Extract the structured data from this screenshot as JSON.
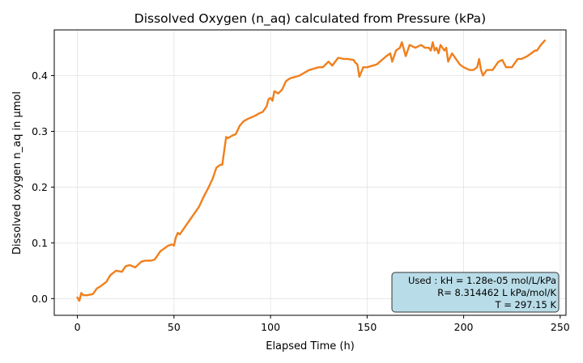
{
  "chart_data": {
    "type": "line",
    "title": "Dissolved Oxygen (n_aq) calculated from Pressure (kPa)",
    "xlabel": "Elapsed Time (h)",
    "ylabel": "Dissolved oxygen n_aq in µmol",
    "xlim": [
      -12,
      253
    ],
    "ylim": [
      -0.03,
      0.482
    ],
    "xticks": [
      0,
      50,
      100,
      150,
      200,
      250
    ],
    "xtick_labels": [
      "0",
      "50",
      "100",
      "150",
      "200",
      "250"
    ],
    "yticks": [
      0.0,
      0.1,
      0.2,
      0.3,
      0.4
    ],
    "ytick_labels": [
      "0.0",
      "0.1",
      "0.2",
      "0.3",
      "0.4"
    ],
    "grid": true,
    "legend": "none",
    "series": [
      {
        "color": "#f07f1c",
        "x": [
          0,
          1,
          2,
          3,
          5,
          8,
          10,
          12,
          15,
          17,
          20,
          23,
          25,
          27,
          30,
          33,
          35,
          38,
          40,
          43,
          45,
          47,
          49,
          50,
          51,
          52,
          53,
          55,
          58,
          60,
          63,
          65,
          68,
          70,
          72,
          74,
          75,
          76,
          77,
          78,
          80,
          82,
          84,
          86,
          88,
          90,
          92,
          94,
          96,
          98,
          99,
          100,
          101,
          102,
          104,
          106,
          108,
          110,
          115,
          120,
          125,
          127,
          130,
          132,
          135,
          138,
          140,
          143,
          144,
          145,
          146,
          148,
          150,
          155,
          160,
          162,
          163,
          165,
          167,
          168,
          170,
          172,
          175,
          178,
          180,
          182,
          183,
          184,
          185,
          186,
          187,
          188,
          190,
          191,
          192,
          194,
          196,
          198,
          200,
          203,
          205,
          207,
          208,
          209,
          210,
          212,
          215,
          218,
          220,
          222,
          225,
          228,
          230,
          233,
          235,
          237,
          238,
          240,
          242
        ],
        "y": [
          0.002,
          -0.004,
          0.01,
          0.006,
          0.006,
          0.008,
          0.018,
          0.022,
          0.03,
          0.042,
          0.05,
          0.048,
          0.058,
          0.06,
          0.056,
          0.066,
          0.068,
          0.068,
          0.07,
          0.085,
          0.09,
          0.095,
          0.097,
          0.095,
          0.11,
          0.118,
          0.115,
          0.125,
          0.14,
          0.15,
          0.165,
          0.18,
          0.2,
          0.215,
          0.235,
          0.24,
          0.24,
          0.265,
          0.29,
          0.288,
          0.292,
          0.295,
          0.31,
          0.318,
          0.322,
          0.325,
          0.328,
          0.332,
          0.335,
          0.345,
          0.358,
          0.36,
          0.355,
          0.372,
          0.368,
          0.375,
          0.39,
          0.395,
          0.4,
          0.41,
          0.415,
          0.415,
          0.425,
          0.418,
          0.432,
          0.43,
          0.43,
          0.428,
          0.423,
          0.42,
          0.398,
          0.415,
          0.415,
          0.42,
          0.435,
          0.44,
          0.425,
          0.445,
          0.45,
          0.46,
          0.435,
          0.455,
          0.45,
          0.455,
          0.45,
          0.45,
          0.445,
          0.46,
          0.445,
          0.45,
          0.44,
          0.455,
          0.445,
          0.45,
          0.425,
          0.44,
          0.43,
          0.42,
          0.415,
          0.41,
          0.41,
          0.415,
          0.43,
          0.41,
          0.4,
          0.41,
          0.41,
          0.425,
          0.428,
          0.415,
          0.415,
          0.43,
          0.43,
          0.435,
          0.44,
          0.445,
          0.445,
          0.455,
          0.463
        ]
      }
    ],
    "annotation": {
      "lines": [
        "Used : kH = 1.28e-05 mol/L/kPa",
        "R= 8.314462 L kPa/mol/K",
        "T = 297.15 K"
      ],
      "placement": "bottom-right",
      "box_color": "#b9dde8"
    }
  }
}
